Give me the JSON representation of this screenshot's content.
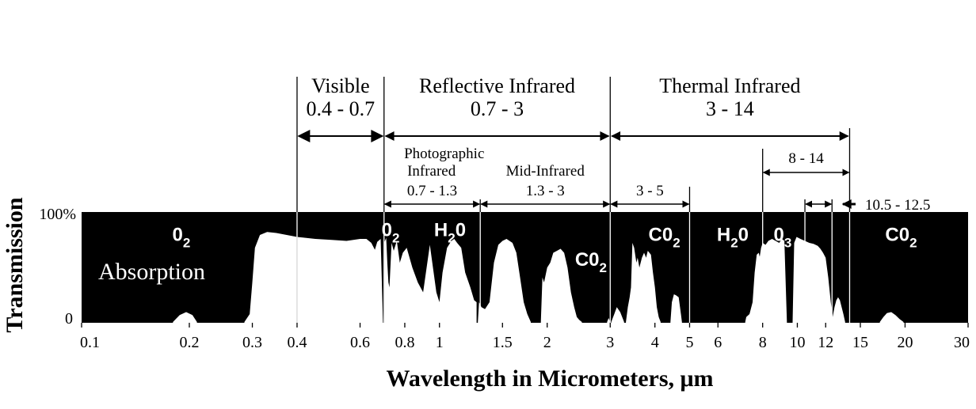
{
  "chart_data": {
    "type": "area",
    "xlabel": "Wavelength in Micrometers, μm",
    "ylabel": "Transmission",
    "xscale": "log",
    "xlim": [
      0.1,
      30
    ],
    "ylim": [
      0,
      100
    ],
    "x_ticks": [
      0.1,
      0.2,
      0.3,
      0.4,
      0.6,
      0.8,
      1,
      1.5,
      2,
      3,
      4,
      5,
      6,
      8,
      10,
      12,
      15,
      20,
      30
    ],
    "x_tick_labels": [
      "0.1",
      "0.2",
      "0.3",
      "0.4",
      "0.6",
      "0.8",
      "1",
      "1.5",
      "2",
      "3",
      "4",
      "5",
      "6",
      "8",
      "10",
      "12",
      "15",
      "20",
      "30"
    ],
    "y_tick_labels": [
      "100%",
      "0"
    ],
    "absorption_label": "Absorption",
    "colors": {
      "absorption": "#000000",
      "transmission": "#ffffff"
    },
    "regions": [
      {
        "name": "Visible",
        "range": "0.4 - 0.7",
        "from": 0.4,
        "to": 0.7
      },
      {
        "name": "Reflective Infrared",
        "range": "0.7 - 3",
        "from": 0.7,
        "to": 3
      },
      {
        "name": "Thermal Infrared",
        "range": "3 - 14",
        "from": 3,
        "to": 14
      }
    ],
    "sub_bands": [
      {
        "name": "Photographic Infrared",
        "name_lines": [
          "Photographic",
          "Infrared"
        ],
        "range": "0.7 - 1.3",
        "from": 0.7,
        "to": 1.3
      },
      {
        "name": "Mid-Infrared",
        "name_lines": [
          "Mid-Infrared"
        ],
        "range": "1.3 - 3",
        "from": 1.3,
        "to": 3
      },
      {
        "name": "",
        "name_lines": [],
        "range": "3 - 5",
        "from": 3,
        "to": 5
      },
      {
        "name": "",
        "name_lines": [],
        "range": "8 - 14",
        "from": 8,
        "to": 14
      },
      {
        "name": "",
        "name_lines": [],
        "range": "10.5 - 12.5",
        "from": 10.5,
        "to": 12.5
      }
    ],
    "gas_labels": [
      {
        "base": "0",
        "sub": "2",
        "x": 0.19,
        "level": 82
      },
      {
        "base": "0",
        "sub": "2",
        "x": 0.73,
        "level": 87
      },
      {
        "base": "H",
        "sub": "2",
        "tail": "0",
        "x": 1.07,
        "level": 87
      },
      {
        "base": "C0",
        "sub": "2",
        "x": 2.65,
        "level": 57
      },
      {
        "base": "C0",
        "sub": "2",
        "x": 4.25,
        "level": 82
      },
      {
        "base": "H",
        "sub": "2",
        "tail": "0",
        "x": 6.6,
        "level": 82
      },
      {
        "base": "0",
        "sub": "3",
        "x": 9.1,
        "level": 82
      },
      {
        "base": "C0",
        "sub": "2",
        "x": 19.5,
        "level": 82
      }
    ],
    "transmission_windows": [
      {
        "x": [
          0.18,
          0.188,
          0.196,
          0.204,
          0.21
        ],
        "y": [
          0,
          7,
          10,
          7,
          0
        ]
      },
      {
        "x": [
          0.285,
          0.295,
          0.3,
          0.305,
          0.315,
          0.33,
          0.35,
          0.4,
          0.45,
          0.5,
          0.55,
          0.6,
          0.625,
          0.645,
          0.66,
          0.67,
          0.685,
          0.695
        ],
        "y": [
          0,
          8,
          40,
          75,
          88,
          91,
          90,
          86,
          84,
          83,
          82,
          84,
          84,
          80,
          73,
          81,
          84,
          0
        ]
      },
      {
        "x": [
          0.7,
          0.71,
          0.715,
          0.72,
          0.725,
          0.735,
          0.745,
          0.76,
          0.775,
          0.79,
          0.81,
          0.84,
          0.87,
          0.9,
          0.94,
          0.98,
          1.0,
          1.02,
          1.05,
          1.08,
          1.1,
          1.12,
          1.15,
          1.18,
          1.22,
          1.25,
          1.27
        ],
        "y": [
          80,
          85,
          60,
          40,
          35,
          80,
          72,
          82,
          60,
          70,
          75,
          55,
          40,
          30,
          78,
          30,
          20,
          50,
          75,
          82,
          84,
          80,
          75,
          50,
          35,
          22,
          20
        ]
      },
      {
        "x": [
          1.28,
          1.29,
          1.31,
          1.34,
          1.38,
          1.42,
          1.46,
          1.5,
          1.54,
          1.6,
          1.64,
          1.68,
          1.72,
          1.76,
          1.8
        ],
        "y": [
          0,
          20,
          15,
          13,
          20,
          60,
          78,
          82,
          84,
          80,
          70,
          45,
          20,
          8,
          0
        ]
      },
      {
        "x": [
          1.92,
          1.94,
          1.96,
          2.0,
          2.04,
          2.08,
          2.13,
          2.18,
          2.23,
          2.28,
          2.33,
          2.38,
          2.42,
          2.46,
          2.5
        ],
        "y": [
          0,
          45,
          40,
          55,
          60,
          70,
          72,
          74,
          70,
          55,
          30,
          15,
          5,
          2,
          0
        ]
      },
      {
        "x": [
          2.94,
          2.97,
          3.0
        ],
        "y": [
          0,
          4,
          0
        ]
      },
      {
        "x": [
          3.02,
          3.08,
          3.13,
          3.2,
          3.28
        ],
        "y": [
          0,
          8,
          15,
          10,
          0
        ]
      },
      {
        "x": [
          3.32,
          3.36,
          3.4,
          3.43,
          3.46,
          3.5,
          3.55,
          3.58,
          3.62,
          3.68,
          3.73,
          3.78,
          3.82,
          3.86,
          3.9,
          3.95,
          4.0,
          4.05,
          4.1,
          4.15
        ],
        "y": [
          0,
          15,
          25,
          35,
          80,
          75,
          60,
          65,
          55,
          65,
          70,
          65,
          72,
          70,
          68,
          50,
          35,
          15,
          5,
          0
        ]
      },
      {
        "x": [
          4.42,
          4.46,
          4.52,
          4.58,
          4.66,
          4.72,
          4.76
        ],
        "y": [
          0,
          20,
          28,
          27,
          25,
          10,
          0
        ]
      },
      {
        "x": [
          7.15,
          7.2,
          7.35,
          7.5,
          7.6,
          7.7,
          7.8,
          7.85,
          7.92,
          8.0,
          8.15,
          8.3,
          8.5,
          8.7,
          8.9,
          9.05,
          9.2,
          9.35
        ],
        "y": [
          0,
          5,
          8,
          20,
          50,
          68,
          70,
          66,
          75,
          80,
          78,
          82,
          84,
          82,
          80,
          84,
          82,
          0
        ]
      },
      {
        "x": [
          9.7,
          9.8,
          9.95,
          10.2,
          10.5,
          10.8,
          11.1,
          11.4,
          11.6,
          11.8,
          12.0,
          12.2,
          12.4,
          12.55,
          12.7,
          12.85,
          13.0,
          13.15,
          13.3,
          13.45,
          13.6
        ],
        "y": [
          0,
          80,
          86,
          84,
          82,
          80,
          79,
          77,
          74,
          70,
          65,
          45,
          20,
          5,
          15,
          22,
          25,
          22,
          15,
          8,
          0
        ]
      },
      {
        "x": [
          17.0,
          17.4,
          17.8,
          18.3,
          18.8,
          19.3,
          19.8
        ],
        "y": [
          0,
          5,
          9,
          10,
          7,
          3,
          0
        ]
      }
    ]
  }
}
